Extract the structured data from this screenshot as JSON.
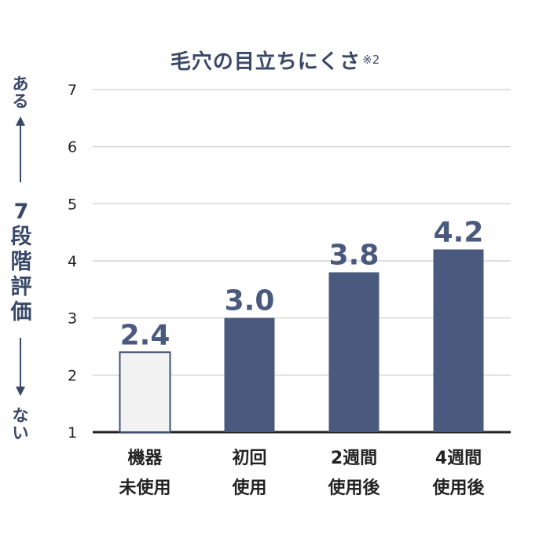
{
  "chart_data": {
    "type": "bar",
    "title": "毛穴の目立ちにくさ",
    "title_note": "※2",
    "ylabel": {
      "top": "ある",
      "middle": "7段階評価",
      "bottom": "ない"
    },
    "categories": [
      [
        "機器",
        "未使用"
      ],
      [
        "初回",
        "使用"
      ],
      [
        "2週間",
        "使用後"
      ],
      [
        "4週間",
        "使用後"
      ]
    ],
    "values": [
      2.4,
      3.0,
      3.8,
      4.2
    ],
    "value_labels": [
      "2.4",
      "3.0",
      "3.8",
      "4.2"
    ],
    "ylim": [
      1,
      7
    ],
    "yticks": [
      1,
      2,
      3,
      4,
      5,
      6,
      7
    ],
    "grid": true,
    "colors": {
      "baseline_bar_fill": "#f2f2f2",
      "baseline_bar_stroke": "#3f5075",
      "bar_fill": "#4a5a7e",
      "text": "#3a4868",
      "grid": "#cccccc",
      "axis": "#222222"
    }
  }
}
